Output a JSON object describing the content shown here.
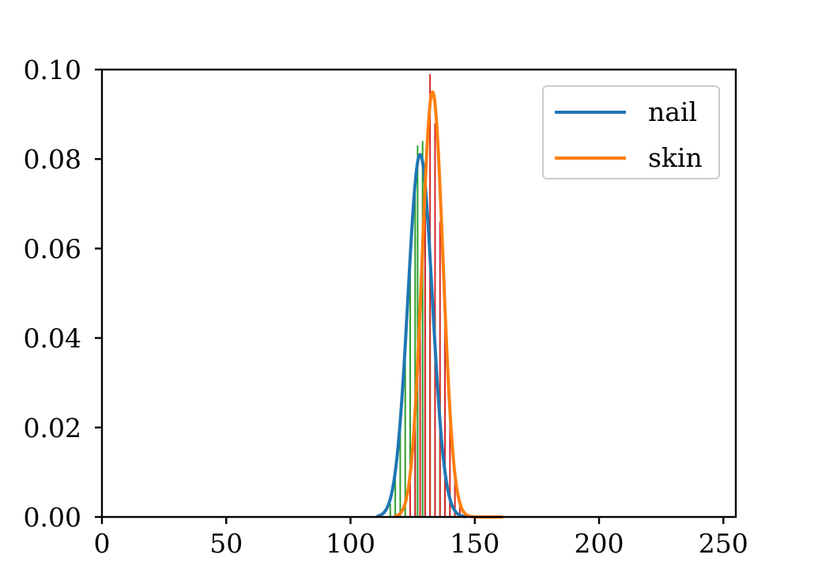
{
  "chart_data": {
    "type": "line",
    "title": "",
    "xlabel": "",
    "ylabel": "",
    "xlim": [
      0,
      255
    ],
    "ylim": [
      0,
      0.1
    ],
    "grid": false,
    "legend_placement": "top-right",
    "x_ticks": [
      0,
      50,
      100,
      150,
      200,
      250
    ],
    "y_ticks": [
      0.0,
      0.02,
      0.04,
      0.06,
      0.08,
      0.1
    ],
    "x_tick_labels": [
      "0",
      "50",
      "100",
      "150",
      "200",
      "250"
    ],
    "y_tick_labels": [
      "0.00",
      "0.02",
      "0.04",
      "0.06",
      "0.08",
      "0.10"
    ],
    "series": [
      {
        "name": "nail",
        "color": "#1f77b4",
        "kind": "gaussian",
        "mean": 128,
        "peak": 0.081,
        "sigma": 4.9,
        "x_range": [
          111,
          146
        ]
      },
      {
        "name": "skin",
        "color": "#ff7f0e",
        "kind": "gaussian",
        "mean": 133,
        "peak": 0.095,
        "sigma": 4.2,
        "x_range": [
          118,
          161
        ]
      }
    ],
    "histograms": [
      {
        "color": "#2ca02c",
        "bars": [
          {
            "x": 116,
            "y": 0.003
          },
          {
            "x": 118,
            "y": 0.009
          },
          {
            "x": 120,
            "y": 0.02
          },
          {
            "x": 122,
            "y": 0.035
          },
          {
            "x": 124,
            "y": 0.055
          },
          {
            "x": 126,
            "y": 0.072
          },
          {
            "x": 127,
            "y": 0.083
          },
          {
            "x": 129,
            "y": 0.084
          },
          {
            "x": 130,
            "y": 0.074
          },
          {
            "x": 132,
            "y": 0.06
          },
          {
            "x": 134,
            "y": 0.045
          },
          {
            "x": 136,
            "y": 0.028
          },
          {
            "x": 138,
            "y": 0.015
          },
          {
            "x": 140,
            "y": 0.006
          },
          {
            "x": 142,
            "y": 0.002
          }
        ]
      },
      {
        "color": "#d62728",
        "bars": [
          {
            "x": 124,
            "y": 0.008
          },
          {
            "x": 126,
            "y": 0.02
          },
          {
            "x": 128,
            "y": 0.045
          },
          {
            "x": 130,
            "y": 0.07
          },
          {
            "x": 132,
            "y": 0.099
          },
          {
            "x": 134,
            "y": 0.088
          },
          {
            "x": 136,
            "y": 0.066
          },
          {
            "x": 138,
            "y": 0.045
          },
          {
            "x": 140,
            "y": 0.022
          },
          {
            "x": 142,
            "y": 0.01
          },
          {
            "x": 144,
            "y": 0.004
          },
          {
            "x": 146,
            "y": 0.001
          }
        ]
      }
    ]
  }
}
